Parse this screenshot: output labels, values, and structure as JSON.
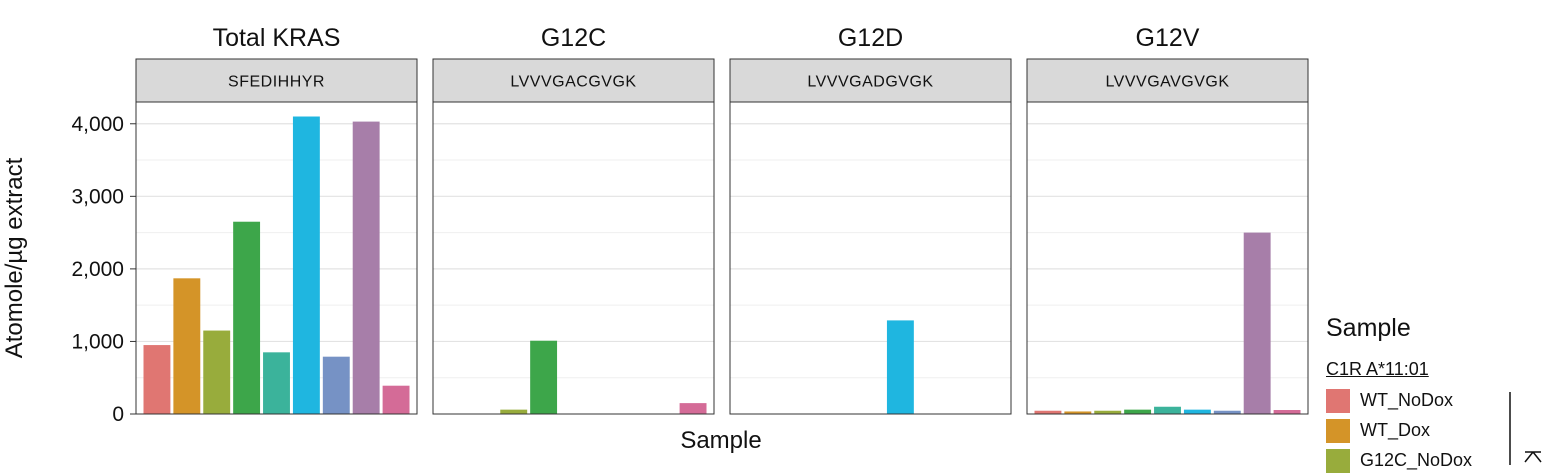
{
  "chart_data": {
    "type": "bar",
    "ylabel": "Atomole/µg extract",
    "xlabel": "Sample",
    "ylim": [
      0,
      4300
    ],
    "yticks": [
      0,
      1000,
      2000,
      3000,
      4000
    ],
    "ytick_labels": [
      "0",
      "1,000",
      "2,000",
      "3,000",
      "4,000"
    ],
    "grid": true,
    "legend": {
      "position": "right",
      "title": "Sample",
      "subtitle": "C1R A*11:01",
      "visible_entries": [
        "WT_NoDox",
        "WT_Dox",
        "G12C_NoDox"
      ]
    },
    "bar_colors": [
      "#e07672",
      "#d49428",
      "#98ac3c",
      "#3da64a",
      "#3bb39b",
      "#1fb6e0",
      "#7692c5",
      "#a77ea9",
      "#d46b97"
    ],
    "panels": [
      {
        "title": "Total KRAS",
        "strip": "SFEDIHHYR",
        "values": [
          950,
          1870,
          1150,
          2650,
          850,
          4100,
          790,
          4030,
          390
        ]
      },
      {
        "title": "G12C",
        "strip": "LVVVGACGVGK",
        "values": [
          0,
          0,
          60,
          1010,
          0,
          0,
          0,
          0,
          150
        ]
      },
      {
        "title": "G12D",
        "strip": "LVVVGADGVGK",
        "values": [
          0,
          0,
          0,
          0,
          0,
          1290,
          0,
          0,
          0
        ]
      },
      {
        "title": "G12V",
        "strip": "LVVVGAVGVGK",
        "values": [
          45,
          35,
          45,
          60,
          100,
          60,
          45,
          2500,
          55
        ]
      }
    ]
  }
}
